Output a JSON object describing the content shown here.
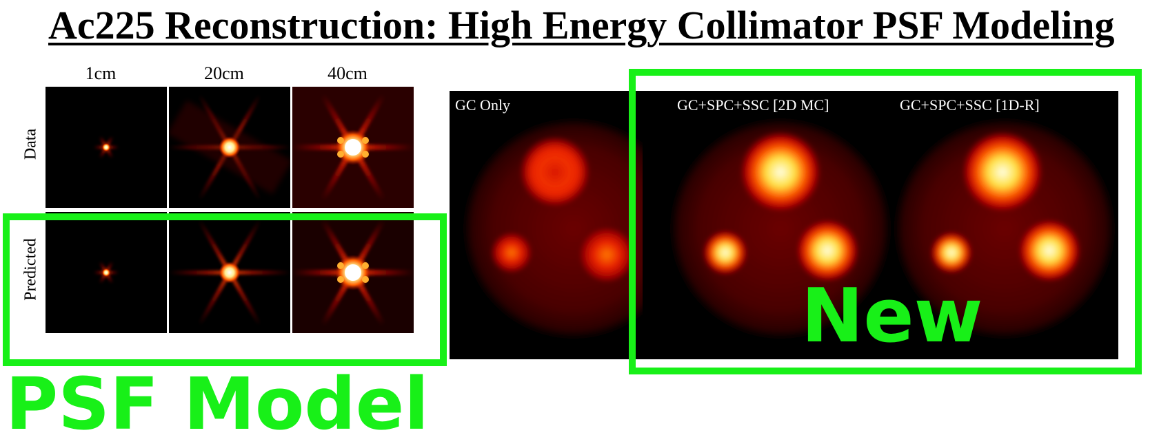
{
  "title": "Ac225 Reconstruction: High Energy Collimator PSF Modeling",
  "psf_grid": {
    "columns": [
      "1cm",
      "20cm",
      "40cm"
    ],
    "rows": [
      "Data",
      "Predicted"
    ]
  },
  "recon_panels": {
    "gc_only": "GC Only",
    "mc2d": "GC+SPC+SSC [2D MC]",
    "r1d": "GC+SPC+SSC [1D-R]"
  },
  "annotations": {
    "psf_model": "PSF Model",
    "new": "New"
  },
  "colors": {
    "highlight": "#18f018",
    "background": "#000000"
  }
}
